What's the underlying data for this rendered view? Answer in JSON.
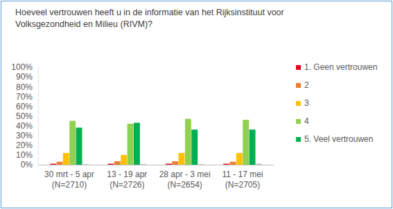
{
  "chart_data": {
    "type": "bar",
    "title": "Hoeveel vertrouwen heeft u in de informatie van het Rijksinstituut voor Volksgezondheid en Milieu (RIVM)?",
    "categories": [
      "30 mrt - 5 apr\n(N=2710)",
      "13 - 19 apr\n(N=2726)",
      "28 apr - 3 mei\n(N=2654)",
      "11 - 17 mei\n(N=2705)"
    ],
    "series": [
      {
        "name": "1. Geen vertrouwen",
        "color": "#e8001c",
        "values": [
          1,
          1,
          1,
          1
        ]
      },
      {
        "name": "2",
        "color": "#ed7d31",
        "values": [
          3,
          3.5,
          3.5,
          3
        ]
      },
      {
        "name": "3",
        "color": "#ffc000",
        "values": [
          12,
          10,
          12,
          12
        ]
      },
      {
        "name": "4",
        "color": "#92d050",
        "values": [
          45,
          42,
          47,
          46
        ]
      },
      {
        "name": "5. Veel vertrouwen",
        "color": "#00b050",
        "values": [
          38,
          43,
          36,
          36
        ]
      },
      {
        "name": null,
        "color": "#bfbfbf",
        "values": [
          0.5,
          0.5,
          0.5,
          1
        ]
      }
    ],
    "ylim": [
      0,
      100
    ],
    "yticks": [
      {
        "value": 0,
        "label": "0%"
      },
      {
        "value": 10,
        "label": "10%"
      },
      {
        "value": 20,
        "label": "20%"
      },
      {
        "value": 30,
        "label": "30%"
      },
      {
        "value": 40,
        "label": "40%"
      },
      {
        "value": 50,
        "label": "50%"
      },
      {
        "value": 60,
        "label": "60%"
      },
      {
        "value": 70,
        "label": "70%"
      },
      {
        "value": 80,
        "label": "80%"
      },
      {
        "value": 90,
        "label": "90%"
      },
      {
        "value": 100,
        "label": "100%"
      }
    ],
    "grid": false,
    "legend": "right"
  }
}
